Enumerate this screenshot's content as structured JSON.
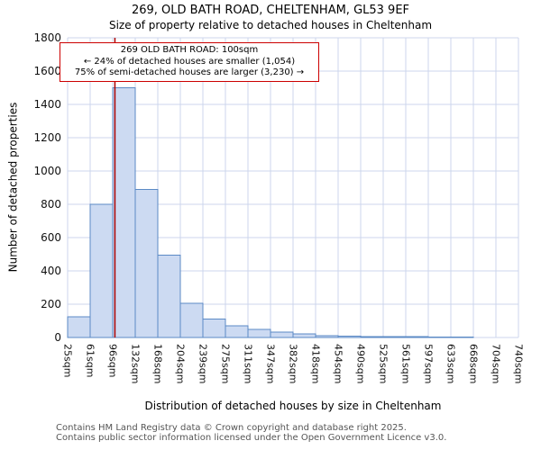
{
  "title": "269, OLD BATH ROAD, CHELTENHAM, GL53 9EF",
  "subtitle": "Size of property relative to detached houses in Cheltenham",
  "annotation": {
    "line1": "269 OLD BATH ROAD: 100sqm",
    "line2": "← 24% of detached houses are smaller (1,054)",
    "line3": "75% of semi-detached houses are larger (3,230) →"
  },
  "footer": {
    "line1": "Contains HM Land Registry data © Crown copyright and database right 2025.",
    "line2": "Contains public sector information licensed under the Open Government Licence v3.0."
  },
  "chart_data": {
    "type": "bar",
    "title": "269, OLD BATH ROAD, CHELTENHAM, GL53 9EF — Size of property relative to detached houses in Cheltenham",
    "xlabel": "Distribution of detached houses by size in Cheltenham",
    "ylabel": "Number of detached properties",
    "categories": [
      "25sqm",
      "61sqm",
      "96sqm",
      "132sqm",
      "168sqm",
      "204sqm",
      "239sqm",
      "275sqm",
      "311sqm",
      "347sqm",
      "382sqm",
      "418sqm",
      "454sqm",
      "490sqm",
      "525sqm",
      "561sqm",
      "597sqm",
      "633sqm",
      "668sqm",
      "704sqm",
      "740sqm"
    ],
    "values": [
      125,
      800,
      1500,
      890,
      495,
      205,
      110,
      70,
      48,
      32,
      22,
      12,
      8,
      6,
      5,
      5,
      4,
      2,
      0,
      0
    ],
    "ylim": [
      0,
      1800
    ],
    "ytick_step": 200,
    "x_range_sqm": [
      25,
      740
    ],
    "marker": {
      "value_sqm": 100,
      "color": "#aa0000",
      "label": "100sqm"
    },
    "grid": true,
    "grid_color": "#ccd6ec",
    "bar_fill": "#ccdaf2",
    "bar_stroke": "#5b8ac5",
    "annotation_border": "#cc0000"
  }
}
